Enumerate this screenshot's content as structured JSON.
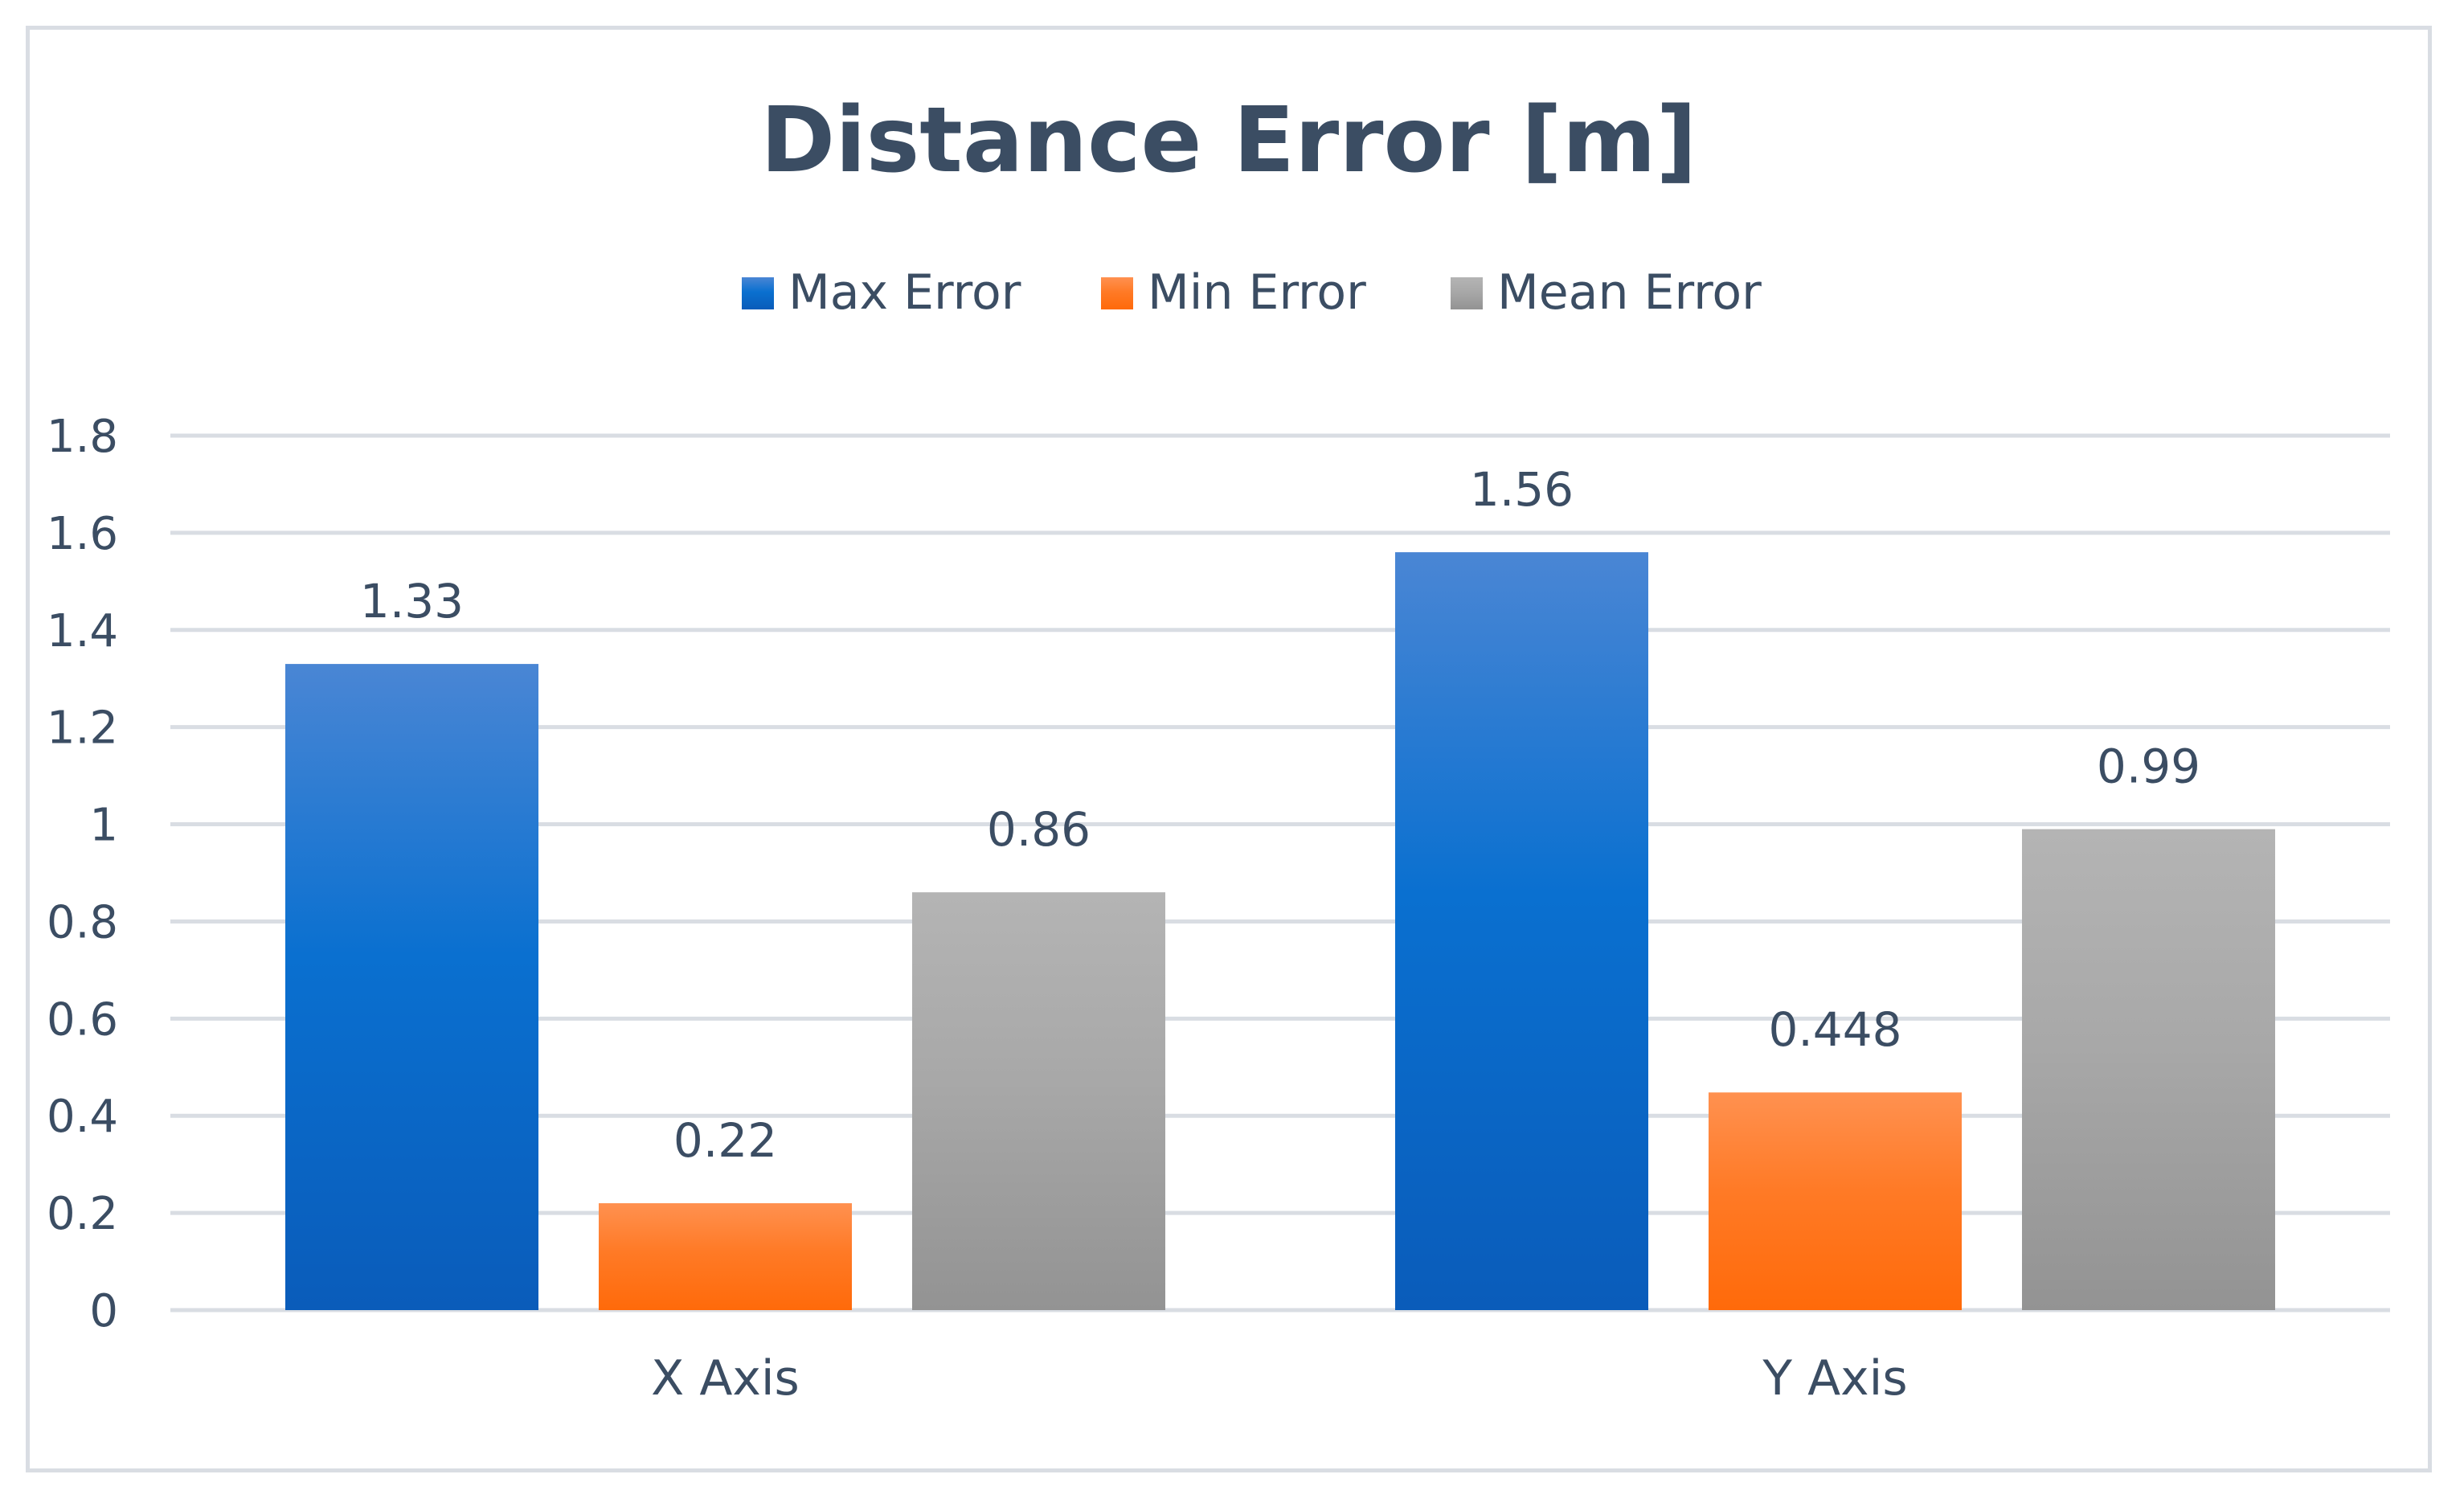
{
  "chart_data": {
    "type": "bar",
    "title": "Distance Error [m]",
    "categories": [
      "X Axis",
      "Y Axis"
    ],
    "series": [
      {
        "name": "Max Error",
        "values": [
          1.33,
          1.56
        ],
        "labels": [
          "1.33",
          "1.56"
        ],
        "color_top": "#4a86d4",
        "color_mid": "#0a70d0",
        "color_bottom": "#0a5cba"
      },
      {
        "name": "Min Error",
        "values": [
          0.22,
          0.448
        ],
        "labels": [
          "0.22",
          "0.448"
        ],
        "color_top": "#ff9150",
        "color_mid": "#ff7a26",
        "color_bottom": "#ff6a0a"
      },
      {
        "name": "Mean Error",
        "values": [
          0.86,
          0.99
        ],
        "labels": [
          "0.86",
          "0.99"
        ],
        "color_top": "#b4b4b4",
        "color_mid": "#a8a8a8",
        "color_bottom": "#939393"
      }
    ],
    "ylim": [
      0,
      1.8
    ],
    "yticks": [
      "0",
      "0.2",
      "0.4",
      "0.6",
      "0.8",
      "1",
      "1.2",
      "1.4",
      "1.6",
      "1.8"
    ],
    "ytick_values": [
      0,
      0.2,
      0.4,
      0.6,
      0.8,
      1,
      1.2,
      1.4,
      1.6,
      1.8
    ],
    "grid": true,
    "legend_position": "top"
  }
}
